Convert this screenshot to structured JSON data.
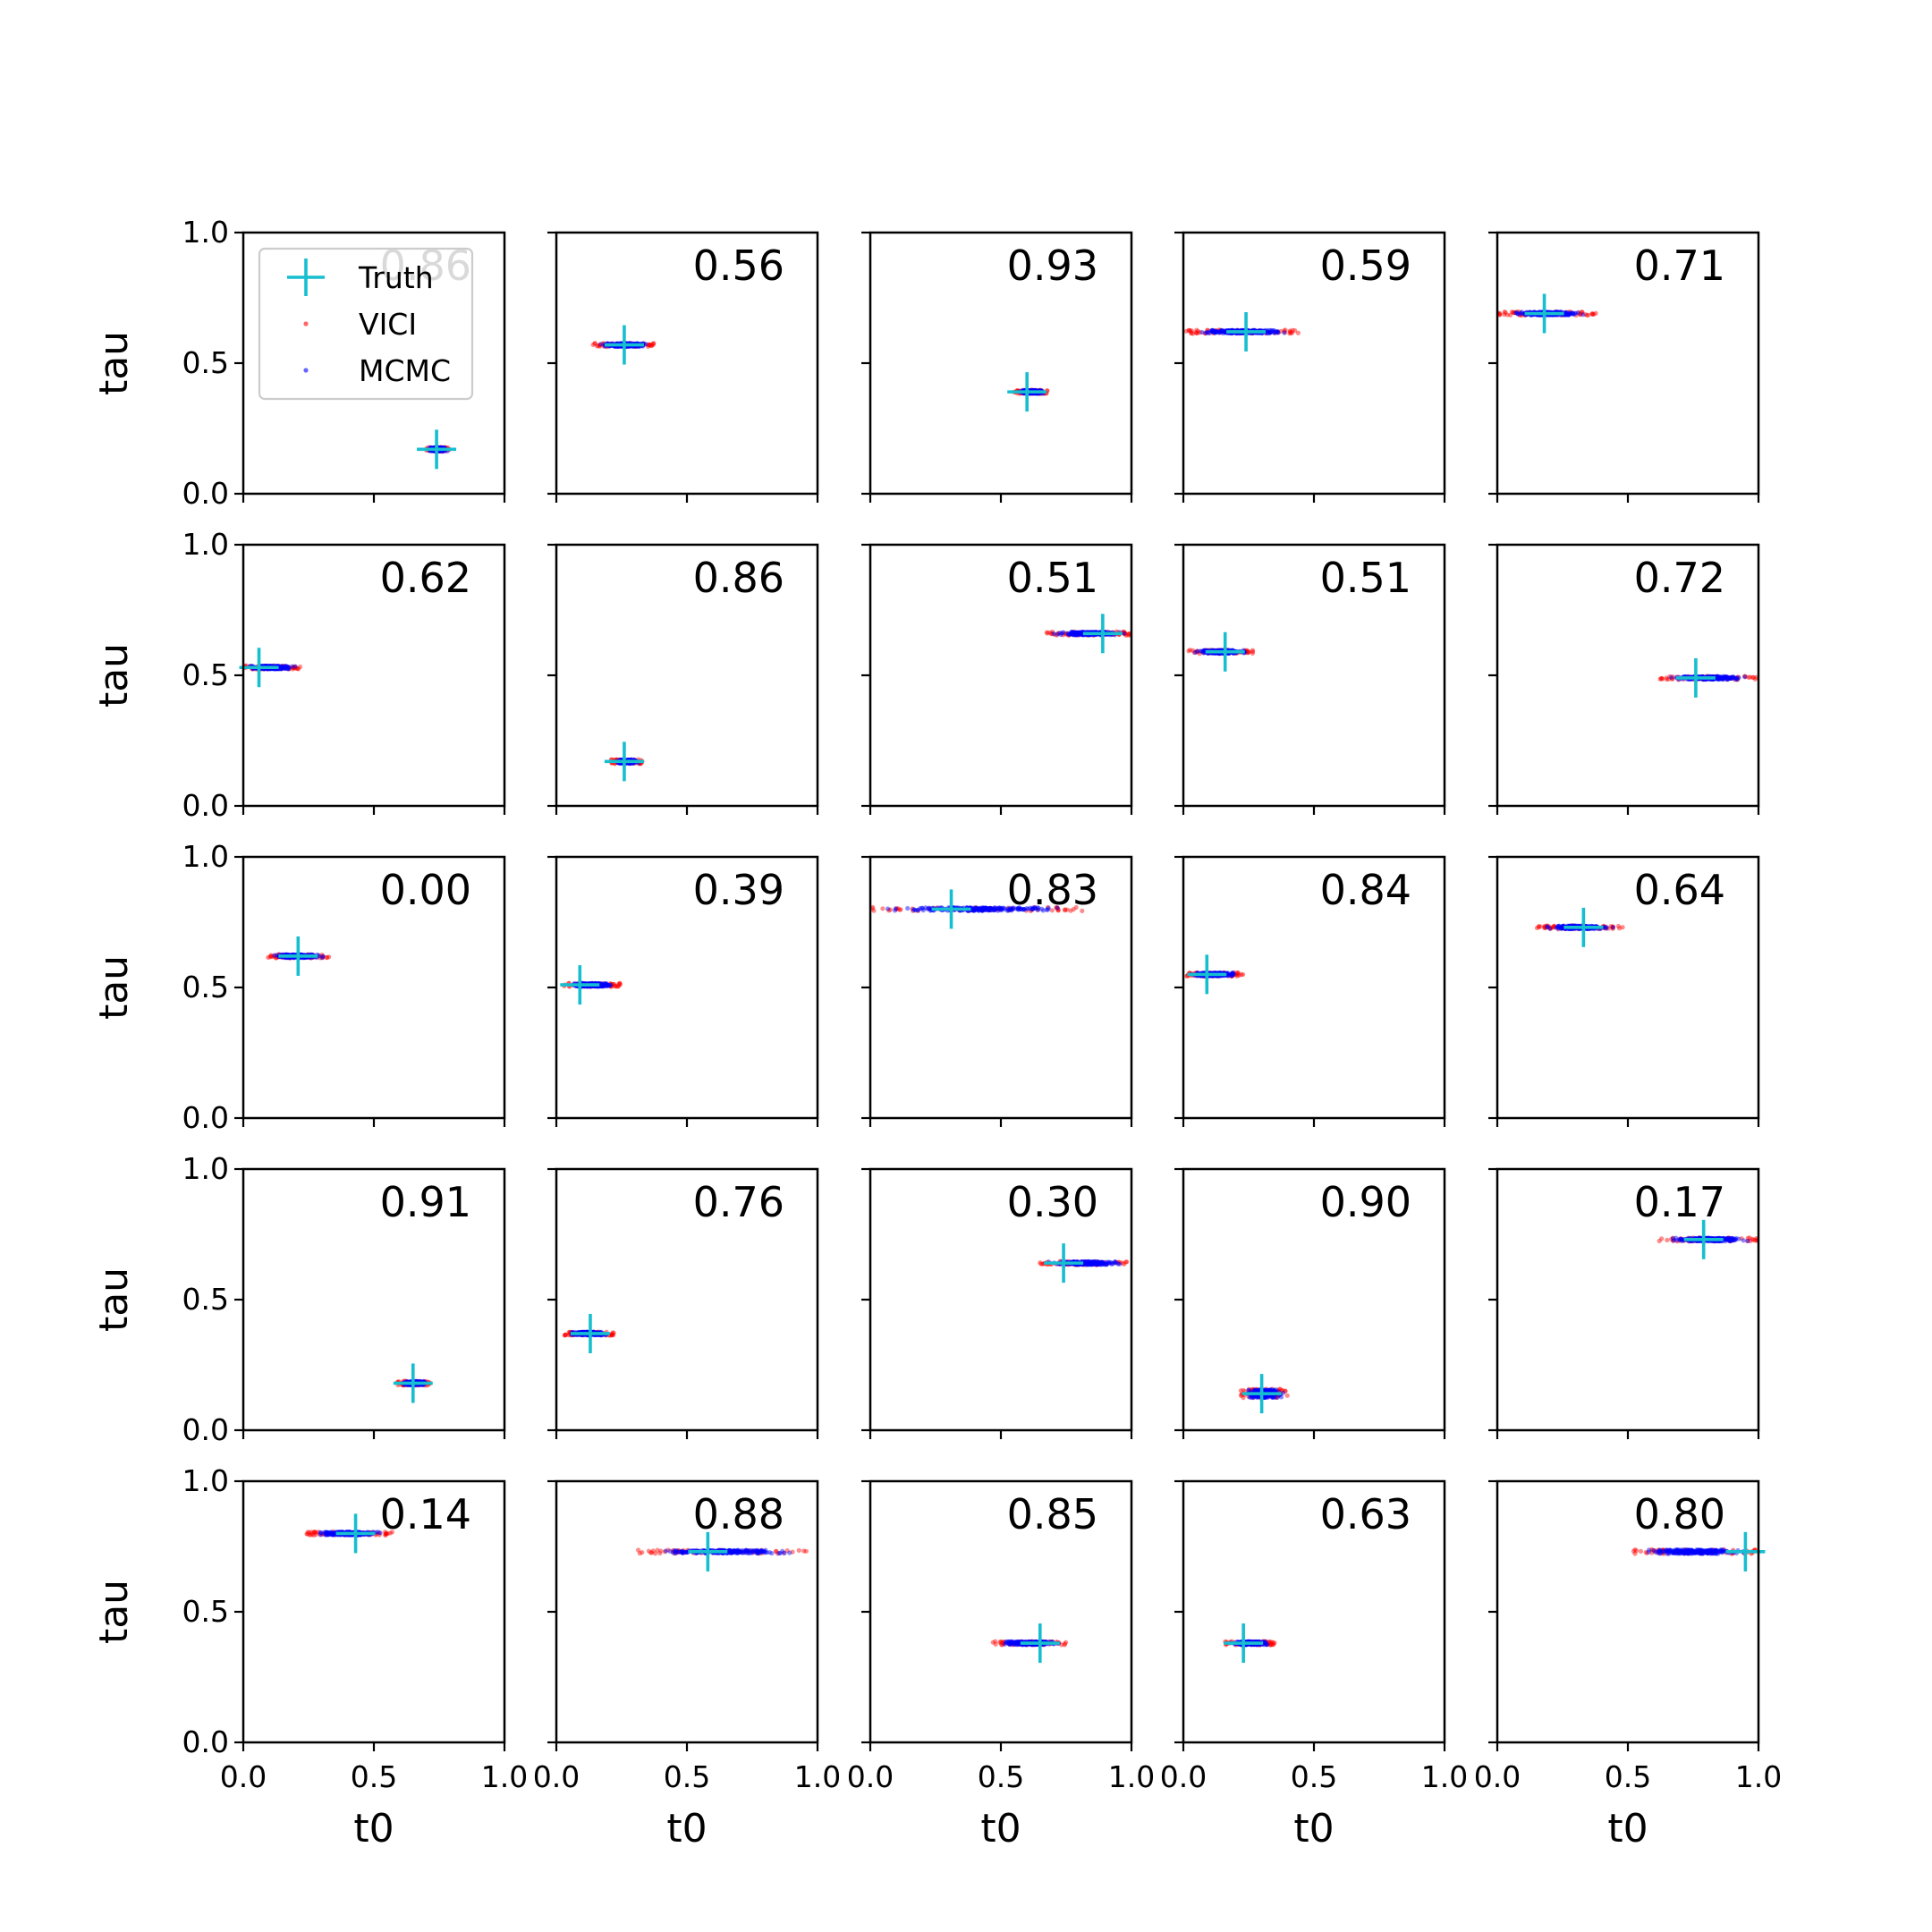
{
  "chart_data": {
    "type": "scatter",
    "layout": "grid of 5 rows by 5 columns",
    "xlabel": "t0",
    "ylabel": "tau",
    "xlim": [
      0.0,
      1.0
    ],
    "ylim": [
      0.0,
      1.0
    ],
    "x_ticks": [
      "0.0",
      "0.5",
      "1.0"
    ],
    "y_ticks": [
      "0.0",
      "0.5",
      "1.0"
    ],
    "grid": false,
    "legend": {
      "placement": "top-left of first panel",
      "entries": [
        {
          "label": "Truth",
          "marker": "plus",
          "color": "#17becf"
        },
        {
          "label": "VICI",
          "marker": "dot",
          "color": "#ff0000"
        },
        {
          "label": "MCMC",
          "marker": "dot",
          "color": "#0000ff"
        }
      ]
    },
    "panels": [
      {
        "value": "0.86",
        "truth": [
          0.74,
          0.17
        ],
        "t0_range": [
          0.7,
          0.79
        ],
        "tau": 0.17,
        "thick": 0.014
      },
      {
        "value": "0.56",
        "truth": [
          0.26,
          0.57
        ],
        "t0_range": [
          0.14,
          0.38
        ],
        "tau": 0.57,
        "thick": 0.012
      },
      {
        "value": "0.93",
        "truth": [
          0.6,
          0.39
        ],
        "t0_range": [
          0.55,
          0.68
        ],
        "tau": 0.39,
        "thick": 0.012
      },
      {
        "value": "0.59",
        "truth": [
          0.24,
          0.62
        ],
        "t0_range": [
          0.01,
          0.45
        ],
        "tau": 0.62,
        "thick": 0.012
      },
      {
        "value": "0.71",
        "truth": [
          0.18,
          0.69
        ],
        "t0_range": [
          0.0,
          0.38
        ],
        "tau": 0.69,
        "thick": 0.012
      },
      {
        "value": "0.62",
        "truth": [
          0.06,
          0.53
        ],
        "t0_range": [
          0.0,
          0.22
        ],
        "tau": 0.53,
        "thick": 0.012
      },
      {
        "value": "0.86",
        "truth": [
          0.26,
          0.17
        ],
        "t0_range": [
          0.21,
          0.33
        ],
        "tau": 0.17,
        "thick": 0.014
      },
      {
        "value": "0.51",
        "truth": [
          0.89,
          0.66
        ],
        "t0_range": [
          0.67,
          1.0
        ],
        "tau": 0.66,
        "thick": 0.012
      },
      {
        "value": "0.51",
        "truth": [
          0.16,
          0.59
        ],
        "t0_range": [
          0.02,
          0.27
        ],
        "tau": 0.59,
        "thick": 0.012
      },
      {
        "value": "0.72",
        "truth": [
          0.76,
          0.49
        ],
        "t0_range": [
          0.62,
          1.0
        ],
        "tau": 0.49,
        "thick": 0.012
      },
      {
        "value": "0.00",
        "truth": [
          0.21,
          0.62
        ],
        "t0_range": [
          0.08,
          0.33
        ],
        "tau": 0.62,
        "thick": 0.012
      },
      {
        "value": "0.39",
        "truth": [
          0.09,
          0.51
        ],
        "t0_range": [
          0.02,
          0.25
        ],
        "tau": 0.51,
        "thick": 0.012
      },
      {
        "value": "0.83",
        "truth": [
          0.31,
          0.8
        ],
        "t0_range": [
          0.0,
          0.82
        ],
        "tau": 0.8,
        "thick": 0.012
      },
      {
        "value": "0.84",
        "truth": [
          0.09,
          0.55
        ],
        "t0_range": [
          0.0,
          0.23
        ],
        "tau": 0.55,
        "thick": 0.012
      },
      {
        "value": "0.64",
        "truth": [
          0.33,
          0.73
        ],
        "t0_range": [
          0.15,
          0.48
        ],
        "tau": 0.73,
        "thick": 0.012
      },
      {
        "value": "0.91",
        "truth": [
          0.65,
          0.18
        ],
        "t0_range": [
          0.59,
          0.72
        ],
        "tau": 0.18,
        "thick": 0.014
      },
      {
        "value": "0.76",
        "truth": [
          0.13,
          0.37
        ],
        "t0_range": [
          0.03,
          0.22
        ],
        "tau": 0.37,
        "thick": 0.012
      },
      {
        "value": "0.30",
        "truth": [
          0.74,
          0.64
        ],
        "t0_range": [
          0.65,
          1.0
        ],
        "tau": 0.64,
        "thick": 0.012
      },
      {
        "value": "0.90",
        "truth": [
          0.3,
          0.14
        ],
        "t0_range": [
          0.22,
          0.4
        ],
        "tau": 0.14,
        "thick": 0.03
      },
      {
        "value": "0.17",
        "truth": [
          0.79,
          0.73
        ],
        "t0_range": [
          0.62,
          1.0
        ],
        "tau": 0.73,
        "thick": 0.012
      },
      {
        "value": "0.14",
        "truth": [
          0.43,
          0.8
        ],
        "t0_range": [
          0.24,
          0.57
        ],
        "tau": 0.8,
        "thick": 0.012
      },
      {
        "value": "0.88",
        "truth": [
          0.58,
          0.73
        ],
        "t0_range": [
          0.3,
          1.0
        ],
        "tau": 0.73,
        "thick": 0.012
      },
      {
        "value": "0.85",
        "truth": [
          0.65,
          0.38
        ],
        "t0_range": [
          0.47,
          0.75
        ],
        "tau": 0.38,
        "thick": 0.012
      },
      {
        "value": "0.63",
        "truth": [
          0.23,
          0.38
        ],
        "t0_range": [
          0.16,
          0.35
        ],
        "tau": 0.38,
        "thick": 0.012
      },
      {
        "value": "0.80",
        "truth": [
          0.95,
          0.73
        ],
        "t0_range": [
          0.52,
          1.0
        ],
        "tau": 0.73,
        "thick": 0.015
      }
    ]
  }
}
